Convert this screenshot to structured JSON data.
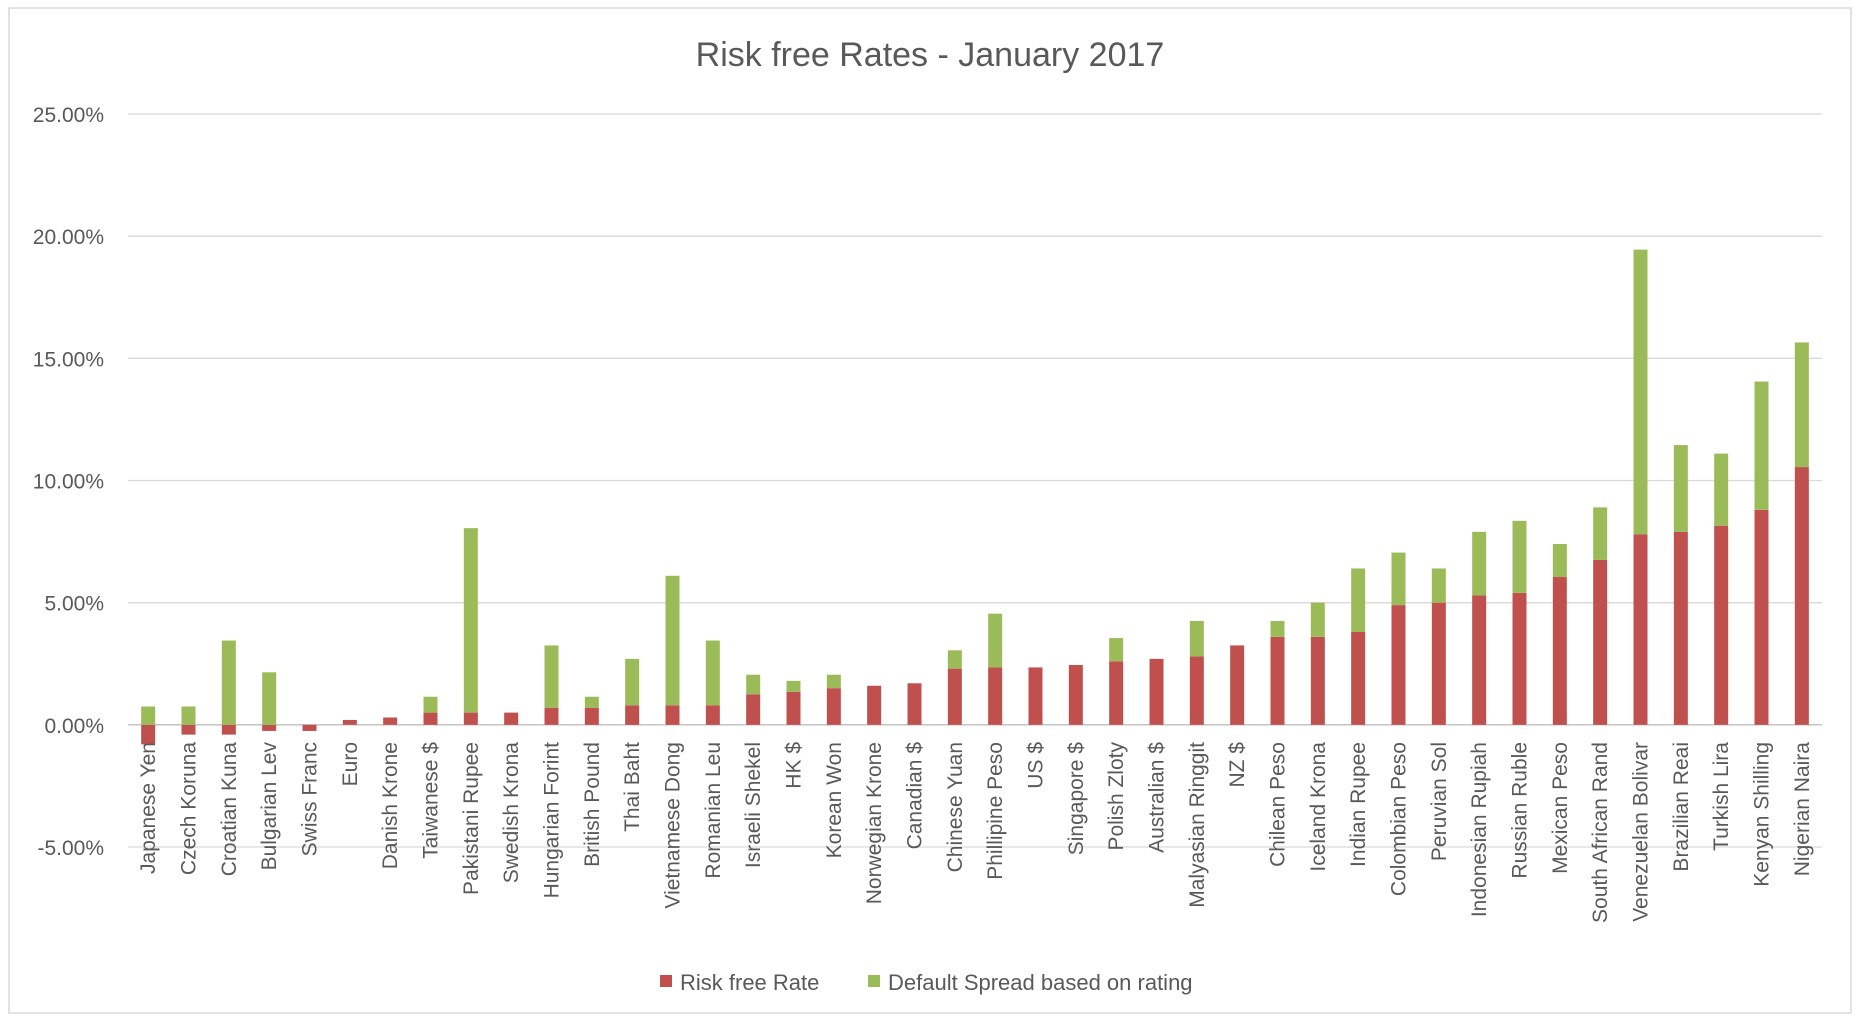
{
  "chart_data": {
    "type": "bar",
    "stacked": true,
    "title": "Risk free Rates - January 2017",
    "xlabel": "",
    "ylabel": "",
    "ylim": [
      -5,
      25
    ],
    "yticks": [
      "25.00%",
      "20.00%",
      "15.00%",
      "10.00%",
      "5.00%",
      "0.00%",
      "-5.00%"
    ],
    "ytick_values": [
      25,
      20,
      15,
      10,
      5,
      0,
      -5
    ],
    "grid": true,
    "legend_position": "bottom",
    "categories": [
      "Japanese Yen",
      "Czech Koruna",
      "Croatian Kuna",
      "Bulgarian Lev",
      "Swiss Franc",
      "Euro",
      "Danish Krone",
      "Taiwanese $",
      "Pakistani Rupee",
      "Swedish Krona",
      "Hungarian Forint",
      "British Pound",
      "Thai Baht",
      "Vietnamese Dong",
      "Romanian Leu",
      "Israeli Shekel",
      "HK $",
      "Korean Won",
      "Norwegian Krone",
      "Canadian $",
      "Chinese Yuan",
      "Phillipine Peso",
      "US $",
      "Singapore $",
      "Polish Zloty",
      "Australian $",
      "Malyasian Ringgit",
      "NZ $",
      "Chilean Peso",
      "Iceland Krona",
      "Indian Rupee",
      "Colombian Peso",
      "Peruvian Sol",
      "Indonesian Rupiah",
      "Russian Ruble",
      "Mexican Peso",
      "South African Rand",
      "Venezuelan Bolivar",
      "Brazilian Reai",
      "Turkish Lira",
      "Kenyan Shilling",
      "Nigerian Naira"
    ],
    "series": [
      {
        "name": "Risk free Rate",
        "color": "#c0504d",
        "values": [
          -0.8,
          -0.4,
          -0.4,
          -0.25,
          -0.25,
          0.2,
          0.3,
          0.5,
          0.5,
          0.5,
          0.7,
          0.7,
          0.8,
          0.8,
          0.8,
          1.25,
          1.35,
          1.5,
          1.6,
          1.7,
          2.3,
          2.35,
          2.35,
          2.45,
          2.6,
          2.7,
          2.8,
          3.25,
          3.6,
          3.6,
          3.8,
          4.9,
          5.0,
          5.3,
          5.4,
          6.05,
          6.75,
          7.8,
          7.9,
          8.15,
          8.8,
          10.55
        ]
      },
      {
        "name": "Default Spread based on rating",
        "color": "#9bbb59",
        "values": [
          0.75,
          0.75,
          3.45,
          2.15,
          0,
          0,
          0,
          0.65,
          7.55,
          0,
          2.55,
          0.45,
          1.9,
          5.3,
          2.65,
          0.8,
          0.45,
          0.55,
          0,
          0,
          0.75,
          2.2,
          0,
          0,
          0.95,
          0,
          1.45,
          0,
          0.65,
          1.4,
          2.6,
          2.15,
          1.4,
          2.6,
          2.95,
          1.35,
          2.15,
          11.65,
          3.55,
          2.95,
          5.25,
          5.1
        ]
      }
    ]
  }
}
